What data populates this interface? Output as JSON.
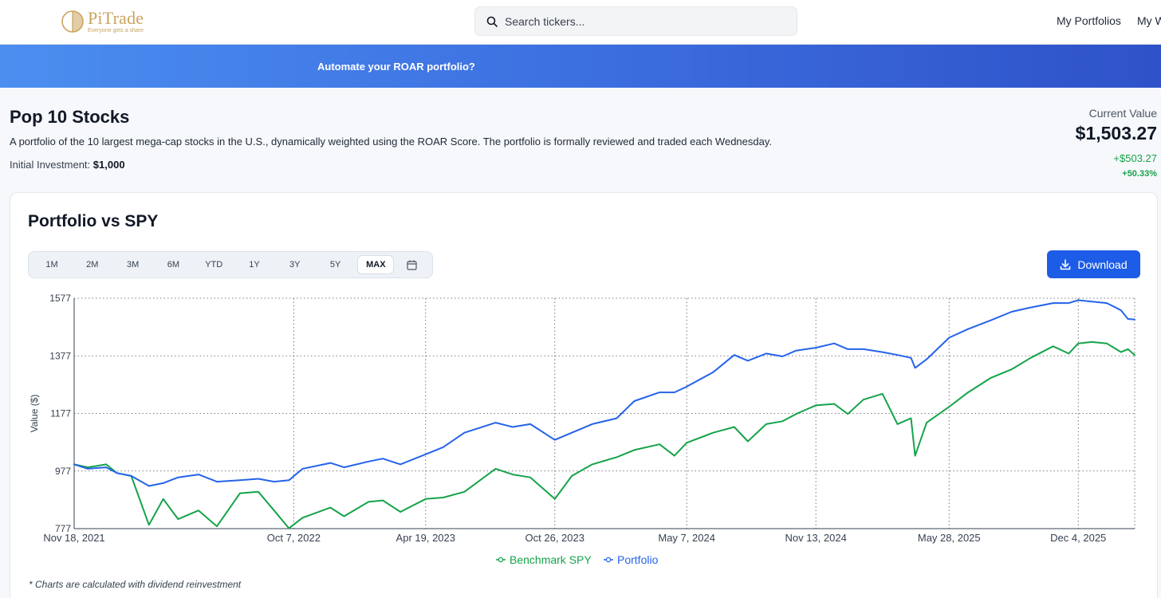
{
  "app": {
    "brand": "PiTrade",
    "tagline": "Everyone gets a share"
  },
  "search": {
    "placeholder": "Search tickers..."
  },
  "nav": {
    "items": [
      "My Portfolios",
      "My W"
    ]
  },
  "banner": {
    "text": "Automate your ROAR portfolio?"
  },
  "portfolio": {
    "title": "Pop 10 Stocks",
    "description": "A portfolio of the 10 largest mega-cap stocks in the U.S., dynamically weighted using the ROAR Score. The portfolio is formally reviewed and traded each Wednesday.",
    "initial_label": "Initial Investment:",
    "initial_value": "$1,000",
    "current_label": "Current Value",
    "current_value": "$1,503.27",
    "change": "+$503.27",
    "change_pct": "+50.33%"
  },
  "card": {
    "title": "Portfolio vs SPY",
    "ranges": [
      "1M",
      "2M",
      "3M",
      "6M",
      "YTD",
      "1Y",
      "3Y",
      "5Y",
      "MAX"
    ],
    "active_range": "MAX",
    "download_label": "Download",
    "footnote": "* Charts are calculated with dividend reinvestment"
  },
  "colors": {
    "portfolio": "#2563eb",
    "benchmark": "#16a34a",
    "accent": "#1d5ce6",
    "brand_gold": "#c9a45c"
  },
  "icons": {
    "search": "search-icon",
    "calendar": "calendar-icon",
    "download": "download-icon"
  },
  "chart_data": {
    "type": "line",
    "ylabel": "Value ($)",
    "xlabel": "",
    "ylim": [
      777,
      1577
    ],
    "yticks": [
      777,
      977,
      1177,
      1377,
      1577
    ],
    "x_tick_labels": [
      "Nov 18, 2021",
      "Oct 7, 2022",
      "Apr 19, 2023",
      "Oct 26, 2023",
      "May 7, 2024",
      "Nov 13, 2024",
      "May 28, 2025",
      "Dec 4, 2025"
    ],
    "x_tick_dates": [
      "2021-11-18",
      "2022-10-07",
      "2023-04-19",
      "2023-10-26",
      "2024-05-07",
      "2024-11-13",
      "2025-05-28",
      "2025-12-04"
    ],
    "xlim": [
      "2021-11-18",
      "2026-02-25"
    ],
    "grid": true,
    "legend_position": "bottom",
    "series": [
      {
        "name": "Benchmark SPY",
        "points": [
          [
            "2021-11-18",
            1000
          ],
          [
            "2021-12-08",
            990
          ],
          [
            "2022-01-04",
            1000
          ],
          [
            "2022-01-20",
            970
          ],
          [
            "2022-02-10",
            960
          ],
          [
            "2022-03-08",
            790
          ],
          [
            "2022-03-29",
            880
          ],
          [
            "2022-04-20",
            810
          ],
          [
            "2022-05-20",
            840
          ],
          [
            "2022-06-16",
            785
          ],
          [
            "2022-07-20",
            900
          ],
          [
            "2022-08-16",
            905
          ],
          [
            "2022-09-08",
            840
          ],
          [
            "2022-09-30",
            778
          ],
          [
            "2022-10-20",
            815
          ],
          [
            "2022-11-30",
            850
          ],
          [
            "2022-12-20",
            820
          ],
          [
            "2023-01-25",
            870
          ],
          [
            "2023-02-15",
            875
          ],
          [
            "2023-03-13",
            835
          ],
          [
            "2023-04-19",
            880
          ],
          [
            "2023-05-15",
            885
          ],
          [
            "2023-06-15",
            905
          ],
          [
            "2023-07-31",
            985
          ],
          [
            "2023-08-25",
            965
          ],
          [
            "2023-09-20",
            955
          ],
          [
            "2023-10-26",
            880
          ],
          [
            "2023-11-20",
            960
          ],
          [
            "2023-12-20",
            1000
          ],
          [
            "2024-01-25",
            1025
          ],
          [
            "2024-02-20",
            1050
          ],
          [
            "2024-03-28",
            1070
          ],
          [
            "2024-04-19",
            1030
          ],
          [
            "2024-05-07",
            1075
          ],
          [
            "2024-06-15",
            1110
          ],
          [
            "2024-07-16",
            1130
          ],
          [
            "2024-08-05",
            1080
          ],
          [
            "2024-09-01",
            1140
          ],
          [
            "2024-09-25",
            1150
          ],
          [
            "2024-10-15",
            1175
          ],
          [
            "2024-11-13",
            1205
          ],
          [
            "2024-12-10",
            1210
          ],
          [
            "2024-12-30",
            1175
          ],
          [
            "2025-01-22",
            1225
          ],
          [
            "2025-02-19",
            1245
          ],
          [
            "2025-03-13",
            1140
          ],
          [
            "2025-04-02",
            1160
          ],
          [
            "2025-04-08",
            1030
          ],
          [
            "2025-04-25",
            1145
          ],
          [
            "2025-05-28",
            1200
          ],
          [
            "2025-06-25",
            1250
          ],
          [
            "2025-07-28",
            1300
          ],
          [
            "2025-08-28",
            1330
          ],
          [
            "2025-09-25",
            1370
          ],
          [
            "2025-10-28",
            1410
          ],
          [
            "2025-11-20",
            1385
          ],
          [
            "2025-12-04",
            1420
          ],
          [
            "2025-12-24",
            1425
          ],
          [
            "2026-01-15",
            1420
          ],
          [
            "2026-02-05",
            1390
          ],
          [
            "2026-02-15",
            1400
          ],
          [
            "2026-02-25",
            1380
          ]
        ]
      },
      {
        "name": "Portfolio",
        "points": [
          [
            "2021-11-18",
            1000
          ],
          [
            "2021-12-08",
            985
          ],
          [
            "2022-01-04",
            990
          ],
          [
            "2022-01-20",
            970
          ],
          [
            "2022-02-10",
            960
          ],
          [
            "2022-03-08",
            925
          ],
          [
            "2022-03-29",
            935
          ],
          [
            "2022-04-20",
            955
          ],
          [
            "2022-05-20",
            965
          ],
          [
            "2022-06-16",
            940
          ],
          [
            "2022-07-20",
            945
          ],
          [
            "2022-08-16",
            950
          ],
          [
            "2022-09-08",
            940
          ],
          [
            "2022-09-30",
            945
          ],
          [
            "2022-10-20",
            985
          ],
          [
            "2022-11-30",
            1005
          ],
          [
            "2022-12-20",
            990
          ],
          [
            "2023-01-25",
            1010
          ],
          [
            "2023-02-15",
            1020
          ],
          [
            "2023-03-13",
            1000
          ],
          [
            "2023-04-19",
            1035
          ],
          [
            "2023-05-15",
            1060
          ],
          [
            "2023-06-15",
            1110
          ],
          [
            "2023-07-31",
            1145
          ],
          [
            "2023-08-25",
            1130
          ],
          [
            "2023-09-20",
            1140
          ],
          [
            "2023-10-26",
            1085
          ],
          [
            "2023-11-20",
            1110
          ],
          [
            "2023-12-20",
            1140
          ],
          [
            "2024-01-25",
            1160
          ],
          [
            "2024-02-20",
            1220
          ],
          [
            "2024-03-28",
            1250
          ],
          [
            "2024-04-19",
            1250
          ],
          [
            "2024-05-07",
            1270
          ],
          [
            "2024-06-15",
            1320
          ],
          [
            "2024-07-16",
            1380
          ],
          [
            "2024-08-05",
            1360
          ],
          [
            "2024-09-01",
            1385
          ],
          [
            "2024-09-25",
            1375
          ],
          [
            "2024-10-15",
            1395
          ],
          [
            "2024-11-13",
            1405
          ],
          [
            "2024-12-10",
            1420
          ],
          [
            "2024-12-30",
            1400
          ],
          [
            "2025-01-22",
            1400
          ],
          [
            "2025-02-19",
            1390
          ],
          [
            "2025-03-13",
            1380
          ],
          [
            "2025-04-02",
            1370
          ],
          [
            "2025-04-08",
            1335
          ],
          [
            "2025-04-25",
            1365
          ],
          [
            "2025-05-28",
            1440
          ],
          [
            "2025-06-25",
            1470
          ],
          [
            "2025-07-28",
            1500
          ],
          [
            "2025-08-28",
            1530
          ],
          [
            "2025-09-25",
            1545
          ],
          [
            "2025-10-28",
            1560
          ],
          [
            "2025-11-20",
            1560
          ],
          [
            "2025-12-04",
            1570
          ],
          [
            "2025-12-24",
            1565
          ],
          [
            "2026-01-15",
            1560
          ],
          [
            "2026-02-05",
            1535
          ],
          [
            "2026-02-15",
            1505
          ],
          [
            "2026-02-25",
            1503
          ]
        ]
      }
    ]
  }
}
